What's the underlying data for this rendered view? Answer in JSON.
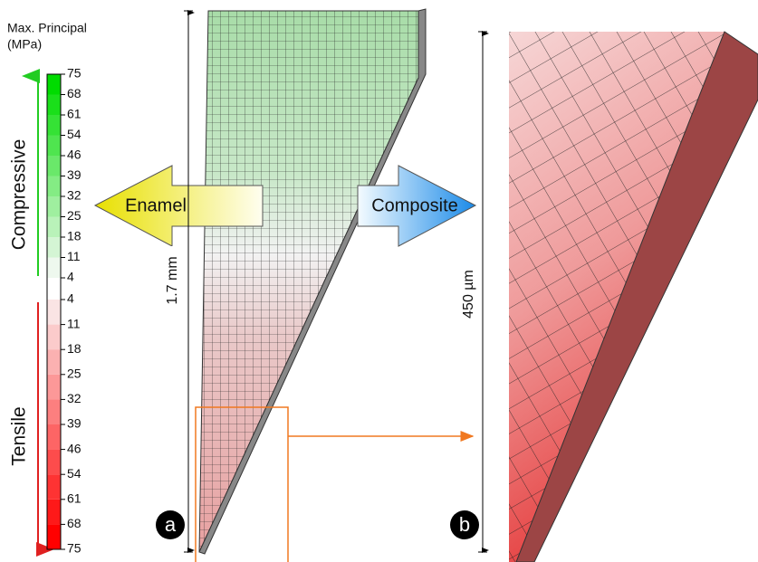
{
  "legend": {
    "title": "Max. Principal",
    "unit": "(MPa)",
    "compressive_label": "Compressive",
    "tensile_label": "Tensile",
    "compressive_ticks": [
      "75",
      "68",
      "61",
      "54",
      "46",
      "39",
      "32",
      "25",
      "18",
      "11",
      "4"
    ],
    "tensile_ticks": [
      "4",
      "11",
      "18",
      "25",
      "32",
      "39",
      "46",
      "54",
      "61",
      "68",
      "75"
    ]
  },
  "labels": {
    "enamel": "Enamel",
    "composite": "Composite",
    "dim_a": "1.7 mm",
    "dim_b": "450 µm",
    "panel_a": "a",
    "panel_b": "b"
  }
}
